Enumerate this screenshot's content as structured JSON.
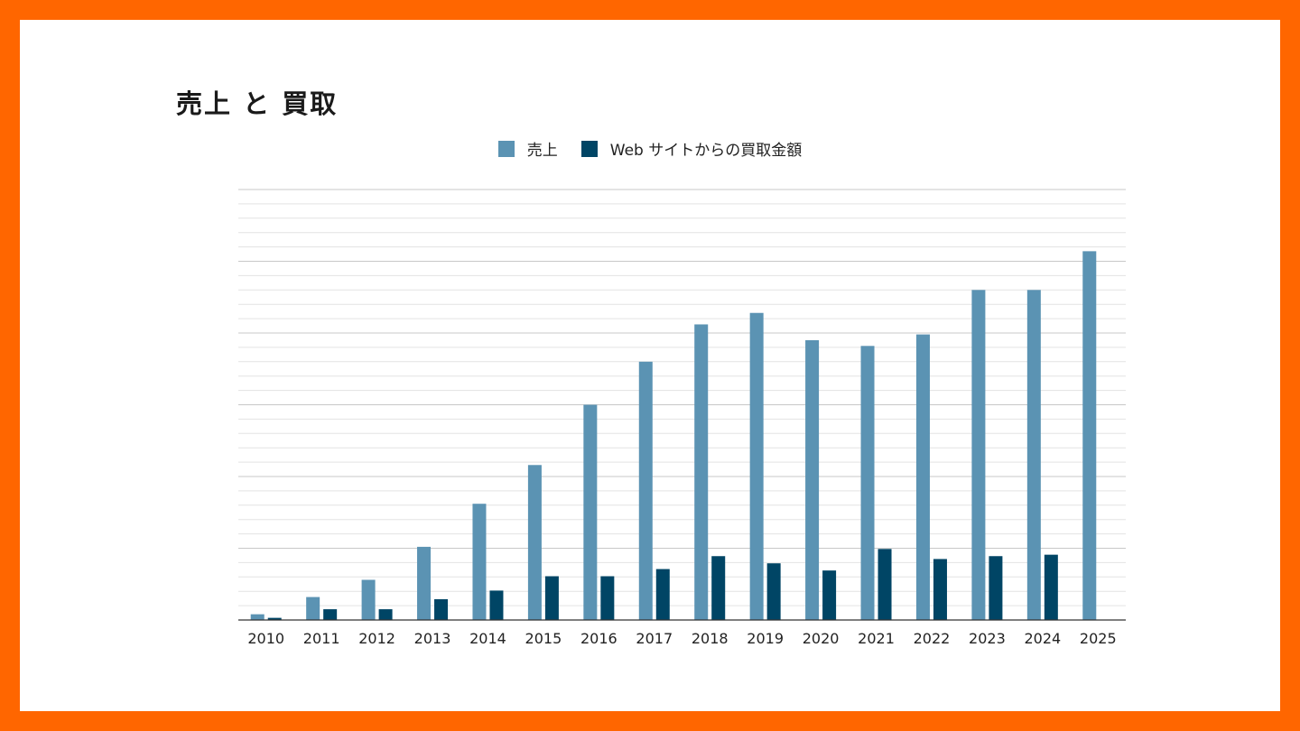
{
  "chart_data": {
    "type": "bar",
    "title": "売上 と 買取",
    "xlabel": "",
    "ylabel": "",
    "categories": [
      "2010",
      "2011",
      "2012",
      "2013",
      "2014",
      "2015",
      "2016",
      "2017",
      "2018",
      "2019",
      "2020",
      "2021",
      "2022",
      "2023",
      "2024",
      "2025"
    ],
    "series": [
      {
        "name": "売上",
        "color": "#5b93b3",
        "values": [
          0.4,
          1.6,
          2.8,
          5.1,
          8.1,
          10.8,
          15.0,
          18.0,
          20.6,
          21.4,
          19.5,
          19.1,
          19.9,
          23.0,
          23.0,
          25.7
        ]
      },
      {
        "name": "Web サイトからの買取金額",
        "color": "#004565",
        "values": [
          0.15,
          0.75,
          0.75,
          1.45,
          2.05,
          3.05,
          3.05,
          3.55,
          4.45,
          3.95,
          3.45,
          4.95,
          4.25,
          4.45,
          4.55,
          null
        ]
      }
    ],
    "ylim": [
      0,
      30
    ],
    "grid": true,
    "legend_position": "top"
  }
}
